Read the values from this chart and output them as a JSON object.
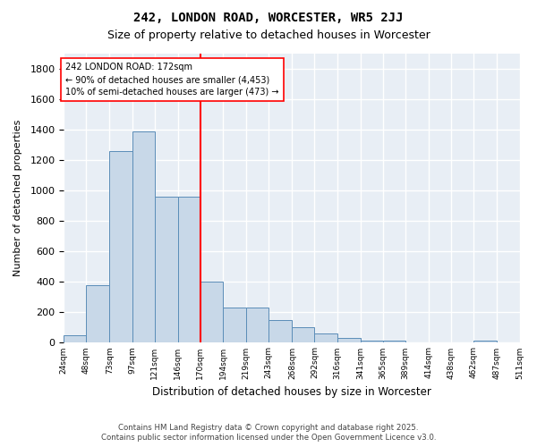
{
  "title": "242, LONDON ROAD, WORCESTER, WR5 2JJ",
  "subtitle": "Size of property relative to detached houses in Worcester",
  "xlabel": "Distribution of detached houses by size in Worcester",
  "ylabel": "Number of detached properties",
  "bar_color": "#c8d8e8",
  "bar_edge_color": "#5b8db8",
  "background_color": "#e8eef5",
  "grid_color": "#ffffff",
  "red_line_x": 170,
  "annotation_text": "242 LONDON ROAD: 172sqm\n← 90% of detached houses are smaller (4,453)\n10% of semi-detached houses are larger (473) →",
  "footer_line1": "Contains HM Land Registry data © Crown copyright and database right 2025.",
  "footer_line2": "Contains public sector information licensed under the Open Government Licence v3.0.",
  "bin_edges": [
    24,
    48,
    73,
    97,
    121,
    146,
    170,
    194,
    219,
    243,
    268,
    292,
    316,
    341,
    365,
    389,
    414,
    438,
    462,
    487,
    511
  ],
  "bin_labels": [
    "24sqm",
    "48sqm",
    "73sqm",
    "97sqm",
    "121sqm",
    "146sqm",
    "170sqm",
    "194sqm",
    "219sqm",
    "243sqm",
    "268sqm",
    "292sqm",
    "316sqm",
    "341sqm",
    "365sqm",
    "389sqm",
    "414sqm",
    "438sqm",
    "462sqm",
    "487sqm",
    "511sqm"
  ],
  "counts": [
    50,
    380,
    1260,
    1390,
    960,
    960,
    400,
    230,
    230,
    150,
    100,
    60,
    30,
    10,
    10,
    0,
    0,
    0,
    10,
    0
  ],
  "ylim": [
    0,
    1900
  ],
  "yticks": [
    0,
    200,
    400,
    600,
    800,
    1000,
    1200,
    1400,
    1600,
    1800
  ]
}
